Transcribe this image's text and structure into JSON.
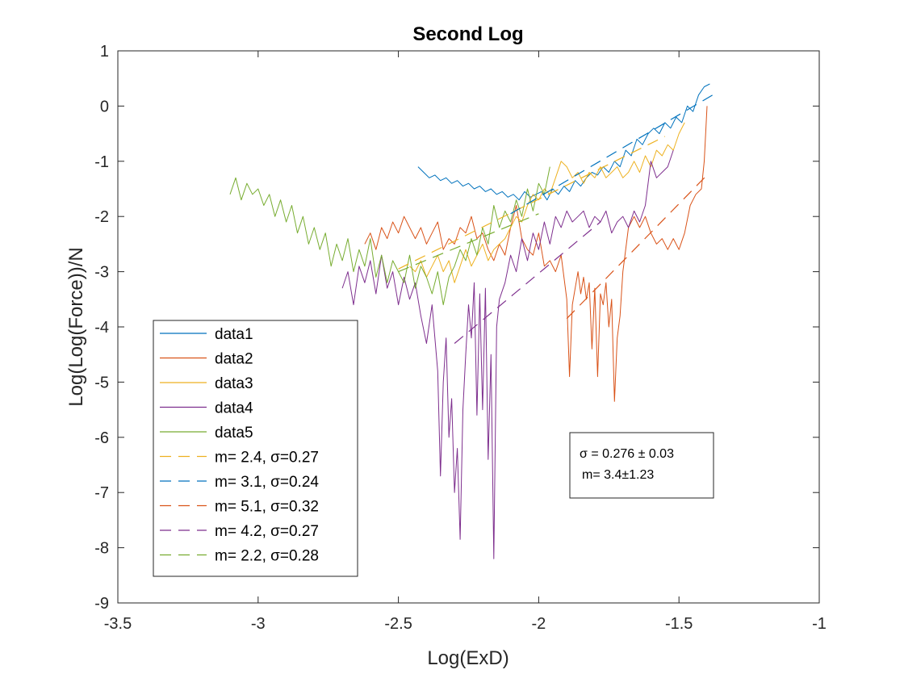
{
  "chart_data": {
    "type": "line",
    "title": "Second Log",
    "xlabel": "Log(ExD)",
    "ylabel": "Log(Log(Force))/N",
    "xlim": [
      -3.5,
      -1
    ],
    "ylim": [
      -9,
      1
    ],
    "xticks": [
      -3.5,
      -3,
      -2.5,
      -2,
      -1.5,
      -1
    ],
    "xtick_labels": [
      "-3.5",
      "-3",
      "-2.5",
      "-2",
      "-1.5",
      "-1"
    ],
    "yticks": [
      -9,
      -8,
      -7,
      -6,
      -5,
      -4,
      -3,
      -2,
      -1,
      0,
      1
    ],
    "ytick_labels": [
      "-9",
      "-8",
      "-7",
      "-6",
      "-5",
      "-4",
      "-3",
      "-2",
      "-1",
      "0",
      "1"
    ],
    "grid": false,
    "legend_position": "bottom-left",
    "series": [
      {
        "name": "data1",
        "style": "solid",
        "color": "#0072BD",
        "x": [
          -2.43,
          -2.41,
          -2.39,
          -2.37,
          -2.35,
          -2.33,
          -2.31,
          -2.29,
          -2.27,
          -2.25,
          -2.23,
          -2.21,
          -2.19,
          -2.17,
          -2.15,
          -2.13,
          -2.11,
          -2.09,
          -2.07,
          -2.05,
          -2.03,
          -2.01,
          -1.99,
          -1.97,
          -1.95,
          -1.93,
          -1.91,
          -1.89,
          -1.87,
          -1.85,
          -1.83,
          -1.81,
          -1.79,
          -1.77,
          -1.75,
          -1.73,
          -1.71,
          -1.69,
          -1.67,
          -1.65,
          -1.63,
          -1.61,
          -1.59,
          -1.57,
          -1.55,
          -1.53,
          -1.51,
          -1.49,
          -1.47,
          -1.45,
          -1.43,
          -1.41,
          -1.39
        ],
        "y": [
          -1.1,
          -1.2,
          -1.3,
          -1.25,
          -1.35,
          -1.3,
          -1.4,
          -1.35,
          -1.45,
          -1.4,
          -1.5,
          -1.45,
          -1.55,
          -1.5,
          -1.6,
          -1.55,
          -1.65,
          -1.6,
          -1.7,
          -1.55,
          -1.65,
          -1.6,
          -1.55,
          -1.7,
          -1.5,
          -1.6,
          -1.45,
          -1.55,
          -1.35,
          -1.45,
          -1.3,
          -1.2,
          -1.25,
          -1.1,
          -1.2,
          -1.0,
          -1.1,
          -0.8,
          -0.9,
          -0.6,
          -0.7,
          -0.5,
          -0.4,
          -0.5,
          -0.3,
          -0.4,
          -0.2,
          -0.3,
          0.0,
          -0.1,
          0.2,
          0.35,
          0.4
        ]
      },
      {
        "name": "data2",
        "style": "solid",
        "color": "#D95319",
        "x": [
          -2.62,
          -2.6,
          -2.58,
          -2.56,
          -2.54,
          -2.52,
          -2.5,
          -2.48,
          -2.46,
          -2.44,
          -2.42,
          -2.4,
          -2.38,
          -2.36,
          -2.34,
          -2.32,
          -2.3,
          -2.28,
          -2.26,
          -2.24,
          -2.22,
          -2.2,
          -2.18,
          -2.16,
          -2.14,
          -2.12,
          -2.1,
          -2.08,
          -2.06,
          -2.04,
          -2.02,
          -2.0,
          -1.98,
          -1.96,
          -1.94,
          -1.92,
          -1.9,
          -1.89,
          -1.88,
          -1.87,
          -1.86,
          -1.85,
          -1.84,
          -1.83,
          -1.82,
          -1.81,
          -1.8,
          -1.79,
          -1.78,
          -1.77,
          -1.76,
          -1.75,
          -1.74,
          -1.73,
          -1.72,
          -1.71,
          -1.7,
          -1.69,
          -1.68,
          -1.66,
          -1.64,
          -1.62,
          -1.6,
          -1.58,
          -1.56,
          -1.54,
          -1.52,
          -1.5,
          -1.48,
          -1.46,
          -1.44,
          -1.42,
          -1.41,
          -1.4
        ],
        "y": [
          -2.5,
          -2.3,
          -2.6,
          -2.2,
          -2.4,
          -2.1,
          -2.3,
          -2.0,
          -2.2,
          -2.4,
          -2.2,
          -2.5,
          -2.3,
          -2.1,
          -2.6,
          -2.4,
          -2.5,
          -2.2,
          -2.3,
          -2.0,
          -2.4,
          -2.3,
          -2.6,
          -2.8,
          -2.5,
          -2.7,
          -2.2,
          -1.8,
          -2.4,
          -2.6,
          -2.7,
          -2.3,
          -2.9,
          -2.8,
          -3.0,
          -2.7,
          -3.5,
          -4.9,
          -3.6,
          -3.3,
          -3.0,
          -3.4,
          -3.1,
          -3.5,
          -3.2,
          -4.4,
          -3.3,
          -4.9,
          -3.4,
          -3.6,
          -3.2,
          -4.0,
          -3.5,
          -5.35,
          -4.2,
          -3.8,
          -3.0,
          -2.6,
          -2.2,
          -2.0,
          -2.2,
          -2.0,
          -2.3,
          -2.5,
          -2.4,
          -2.6,
          -2.4,
          -2.6,
          -2.3,
          -1.8,
          -1.6,
          -1.5,
          -1.0,
          0.0
        ]
      },
      {
        "name": "data3",
        "style": "solid",
        "color": "#EDB120",
        "x": [
          -2.46,
          -2.44,
          -2.42,
          -2.4,
          -2.38,
          -2.36,
          -2.34,
          -2.32,
          -2.3,
          -2.28,
          -2.26,
          -2.24,
          -2.22,
          -2.2,
          -2.18,
          -2.16,
          -2.14,
          -2.12,
          -2.1,
          -2.08,
          -2.06,
          -2.04,
          -2.02,
          -2.0,
          -1.98,
          -1.96,
          -1.94,
          -1.92,
          -1.9,
          -1.88,
          -1.86,
          -1.84,
          -1.82,
          -1.8,
          -1.78,
          -1.76,
          -1.74,
          -1.72,
          -1.7,
          -1.68,
          -1.66,
          -1.64,
          -1.62,
          -1.6,
          -1.58,
          -1.56,
          -1.54,
          -1.52,
          -1.5,
          -1.48
        ],
        "y": [
          -2.9,
          -3.0,
          -2.8,
          -3.1,
          -2.9,
          -2.7,
          -3.0,
          -2.8,
          -3.2,
          -2.9,
          -2.6,
          -2.9,
          -2.7,
          -2.5,
          -2.8,
          -2.6,
          -2.5,
          -2.4,
          -2.2,
          -2.0,
          -2.1,
          -1.8,
          -1.6,
          -1.7,
          -1.5,
          -1.6,
          -1.3,
          -1.0,
          -1.1,
          -1.3,
          -1.2,
          -1.4,
          -1.2,
          -1.3,
          -1.1,
          -1.3,
          -1.2,
          -1.1,
          -1.3,
          -1.2,
          -1.0,
          -1.2,
          -0.9,
          -1.1,
          -0.8,
          -0.9,
          -0.7,
          -0.8,
          -0.5,
          -0.3
        ]
      },
      {
        "name": "data4",
        "style": "solid",
        "color": "#7E2F8E",
        "x": [
          -2.7,
          -2.68,
          -2.66,
          -2.64,
          -2.62,
          -2.6,
          -2.58,
          -2.56,
          -2.54,
          -2.52,
          -2.5,
          -2.48,
          -2.46,
          -2.44,
          -2.42,
          -2.4,
          -2.38,
          -2.36,
          -2.35,
          -2.34,
          -2.33,
          -2.32,
          -2.31,
          -2.3,
          -2.29,
          -2.28,
          -2.27,
          -2.26,
          -2.25,
          -2.24,
          -2.23,
          -2.22,
          -2.21,
          -2.2,
          -2.19,
          -2.18,
          -2.17,
          -2.16,
          -2.15,
          -2.14,
          -2.12,
          -2.1,
          -2.08,
          -2.06,
          -2.04,
          -2.02,
          -2.0,
          -1.98,
          -1.96,
          -1.94,
          -1.92,
          -1.9,
          -1.88,
          -1.86,
          -1.84,
          -1.82,
          -1.8,
          -1.78,
          -1.76,
          -1.74,
          -1.72,
          -1.7,
          -1.68,
          -1.66,
          -1.64,
          -1.62,
          -1.6,
          -1.58,
          -1.56,
          -1.54,
          -1.52
        ],
        "y": [
          -3.3,
          -3.0,
          -3.6,
          -2.9,
          -3.2,
          -2.8,
          -3.4,
          -2.7,
          -3.3,
          -3.0,
          -3.6,
          -3.1,
          -3.5,
          -3.2,
          -3.8,
          -4.3,
          -3.6,
          -4.8,
          -6.7,
          -5.0,
          -4.2,
          -6.0,
          -5.3,
          -7.0,
          -6.2,
          -7.85,
          -5.5,
          -4.5,
          -3.6,
          -4.2,
          -3.2,
          -5.6,
          -3.4,
          -5.5,
          -3.3,
          -6.4,
          -4.5,
          -8.2,
          -4.0,
          -3.5,
          -3.2,
          -2.7,
          -3.0,
          -2.4,
          -2.8,
          -2.3,
          -2.6,
          -2.1,
          -2.5,
          -2.0,
          -2.2,
          -1.9,
          -2.1,
          -2.0,
          -1.9,
          -2.2,
          -2.0,
          -2.1,
          -1.9,
          -2.3,
          -2.1,
          -2.0,
          -2.2,
          -1.9,
          -2.1,
          -1.8,
          -1.0,
          -1.3,
          -1.2,
          -1.1,
          -0.8
        ]
      },
      {
        "name": "data5",
        "style": "solid",
        "color": "#77AC30",
        "x": [
          -3.1,
          -3.08,
          -3.06,
          -3.04,
          -3.02,
          -3.0,
          -2.98,
          -2.96,
          -2.94,
          -2.92,
          -2.9,
          -2.88,
          -2.86,
          -2.84,
          -2.82,
          -2.8,
          -2.78,
          -2.76,
          -2.74,
          -2.72,
          -2.7,
          -2.68,
          -2.66,
          -2.64,
          -2.62,
          -2.6,
          -2.58,
          -2.56,
          -2.54,
          -2.52,
          -2.5,
          -2.48,
          -2.46,
          -2.44,
          -2.42,
          -2.4,
          -2.38,
          -2.36,
          -2.34,
          -2.32,
          -2.3,
          -2.28,
          -2.26,
          -2.24,
          -2.22,
          -2.2,
          -2.18,
          -2.16,
          -2.14,
          -2.12,
          -2.1,
          -2.08,
          -2.06,
          -2.04,
          -2.02,
          -2.0,
          -1.98,
          -1.96
        ],
        "y": [
          -1.6,
          -1.3,
          -1.7,
          -1.4,
          -1.6,
          -1.5,
          -1.8,
          -1.6,
          -2.0,
          -1.7,
          -2.1,
          -1.8,
          -2.3,
          -2.0,
          -2.5,
          -2.2,
          -2.6,
          -2.3,
          -2.9,
          -2.5,
          -2.8,
          -2.4,
          -3.0,
          -2.6,
          -2.9,
          -2.4,
          -3.1,
          -2.7,
          -3.2,
          -2.8,
          -3.0,
          -3.2,
          -2.7,
          -3.3,
          -2.9,
          -3.1,
          -3.4,
          -3.0,
          -3.6,
          -3.1,
          -2.9,
          -2.6,
          -2.8,
          -2.4,
          -2.7,
          -2.2,
          -2.5,
          -1.8,
          -2.2,
          -1.9,
          -2.1,
          -1.7,
          -2.0,
          -1.5,
          -1.9,
          -1.4,
          -1.6,
          -1.1
        ]
      },
      {
        "name": "m= 2.4, σ=0.27",
        "style": "dashed",
        "color": "#EDB120",
        "x": [
          -2.5,
          -1.55
        ],
        "y": [
          -2.95,
          -0.55
        ]
      },
      {
        "name": "m= 3.1, σ=0.24",
        "style": "dashed",
        "color": "#0072BD",
        "x": [
          -2.1,
          -1.38
        ],
        "y": [
          -1.95,
          0.2
        ]
      },
      {
        "name": "m= 5.1, σ=0.32",
        "style": "dashed",
        "color": "#D95319",
        "x": [
          -1.9,
          -1.4
        ],
        "y": [
          -3.85,
          -1.25
        ]
      },
      {
        "name": "m= 4.2, σ=0.27",
        "style": "dashed",
        "color": "#7E2F8E",
        "x": [
          -2.3,
          -1.78
        ],
        "y": [
          -4.3,
          -2.1
        ]
      },
      {
        "name": "m= 2.2, σ=0.28",
        "style": "dashed",
        "color": "#77AC30",
        "x": [
          -2.5,
          -2.0
        ],
        "y": [
          -3.0,
          -1.95
        ]
      }
    ],
    "annotation": {
      "line1": "σ = 0.276 ± 0.03",
      "line2": "m= 3.4±1.23"
    }
  }
}
